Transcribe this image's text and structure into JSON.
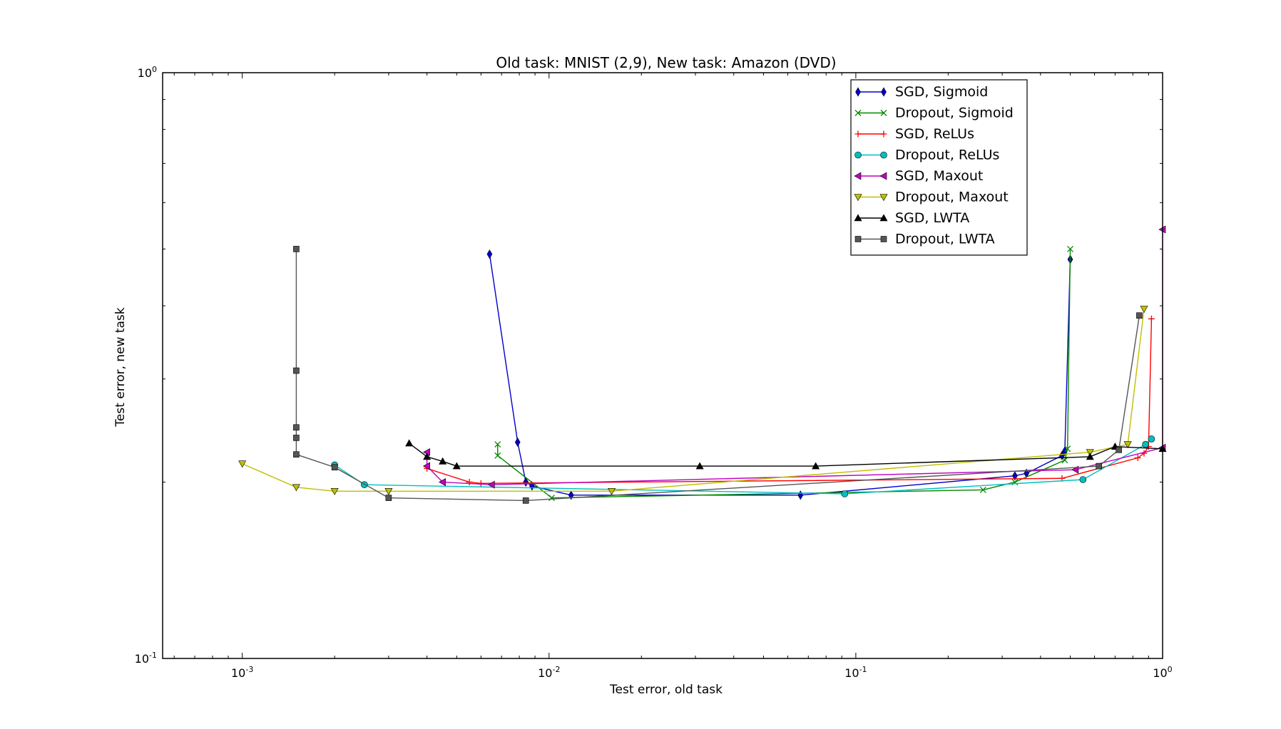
{
  "chart_data": {
    "type": "line",
    "title": "Old task: MNIST (2,9), New task: Amazon (DVD)",
    "xlabel": "Test error, old task",
    "ylabel": "Test error, new task",
    "xscale": "log",
    "yscale": "log",
    "xlim": [
      0.00055,
      1.0
    ],
    "ylim": [
      0.1,
      1.0
    ],
    "xticks": [
      {
        "value": 0.001,
        "base": "10",
        "exp": "-3"
      },
      {
        "value": 0.01,
        "base": "10",
        "exp": "-2"
      },
      {
        "value": 0.1,
        "base": "10",
        "exp": "-1"
      },
      {
        "value": 1.0,
        "base": "10",
        "exp": "0"
      }
    ],
    "yticks": [
      {
        "value": 0.1,
        "base": "10",
        "exp": "-1"
      },
      {
        "value": 1.0,
        "base": "10",
        "exp": "0"
      }
    ],
    "grid": false,
    "legend_position": "top-right",
    "series": [
      {
        "name": "SGD, Sigmoid",
        "color": "#0000cc",
        "marker": "diamond",
        "points": [
          [
            0.0064,
            0.49
          ],
          [
            0.0079,
            0.234
          ],
          [
            0.0084,
            0.2
          ],
          [
            0.0088,
            0.197
          ],
          [
            0.0118,
            0.19
          ],
          [
            0.066,
            0.19
          ],
          [
            0.33,
            0.205
          ],
          [
            0.36,
            0.207
          ],
          [
            0.47,
            0.222
          ],
          [
            0.48,
            0.226
          ],
          [
            0.5,
            0.48
          ]
        ]
      },
      {
        "name": "Dropout, Sigmoid",
        "color": "#008800",
        "marker": "x",
        "points": [
          [
            0.0068,
            0.232
          ],
          [
            0.0068,
            0.222
          ],
          [
            0.0102,
            0.188
          ],
          [
            0.26,
            0.194
          ],
          [
            0.33,
            0.2
          ],
          [
            0.48,
            0.218
          ],
          [
            0.49,
            0.228
          ],
          [
            0.5,
            0.5
          ]
        ]
      },
      {
        "name": "SGD, ReLUs",
        "color": "#ff0000",
        "marker": "plus",
        "points": [
          [
            0.004,
            0.211
          ],
          [
            0.0055,
            0.2
          ],
          [
            0.006,
            0.199
          ],
          [
            0.47,
            0.203
          ],
          [
            0.83,
            0.22
          ],
          [
            0.87,
            0.224
          ],
          [
            0.9,
            0.23
          ],
          [
            0.92,
            0.38
          ]
        ]
      },
      {
        "name": "Dropout, ReLUs",
        "color": "#00bfbf",
        "marker": "circle",
        "points": [
          [
            0.002,
            0.214
          ],
          [
            0.0025,
            0.198
          ],
          [
            0.092,
            0.191
          ],
          [
            0.55,
            0.202
          ],
          [
            0.88,
            0.232
          ],
          [
            0.92,
            0.237
          ]
        ]
      },
      {
        "name": "SGD, Maxout",
        "color": "#bf00bf",
        "marker": "triangle-left",
        "points": [
          [
            0.004,
            0.225
          ],
          [
            0.004,
            0.213
          ],
          [
            0.0045,
            0.2
          ],
          [
            0.0065,
            0.198
          ],
          [
            0.52,
            0.21
          ],
          [
            1.0,
            0.229
          ],
          [
            1.0,
            0.54
          ]
        ]
      },
      {
        "name": "Dropout, Maxout",
        "color": "#bfbf00",
        "marker": "triangle-down",
        "points": [
          [
            0.001,
            0.215
          ],
          [
            0.0015,
            0.196
          ],
          [
            0.002,
            0.193
          ],
          [
            0.003,
            0.193
          ],
          [
            0.016,
            0.193
          ],
          [
            0.58,
            0.225
          ],
          [
            0.77,
            0.232
          ],
          [
            0.87,
            0.395
          ]
        ]
      },
      {
        "name": "SGD, LWTA",
        "color": "#000000",
        "marker": "triangle-up",
        "points": [
          [
            0.0035,
            0.233
          ],
          [
            0.004,
            0.221
          ],
          [
            0.0045,
            0.217
          ],
          [
            0.005,
            0.213
          ],
          [
            0.031,
            0.213
          ],
          [
            0.074,
            0.213
          ],
          [
            0.58,
            0.221
          ],
          [
            0.7,
            0.23
          ],
          [
            1.0,
            0.228
          ]
        ]
      },
      {
        "name": "Dropout, LWTA",
        "color": "#555555",
        "marker": "square",
        "points": [
          [
            0.0015,
            0.5
          ],
          [
            0.0015,
            0.31
          ],
          [
            0.0015,
            0.248
          ],
          [
            0.0015,
            0.238
          ],
          [
            0.0015,
            0.223
          ],
          [
            0.002,
            0.212
          ],
          [
            0.003,
            0.188
          ],
          [
            0.0084,
            0.186
          ],
          [
            0.62,
            0.213
          ],
          [
            0.72,
            0.227
          ],
          [
            0.84,
            0.385
          ]
        ]
      }
    ]
  }
}
